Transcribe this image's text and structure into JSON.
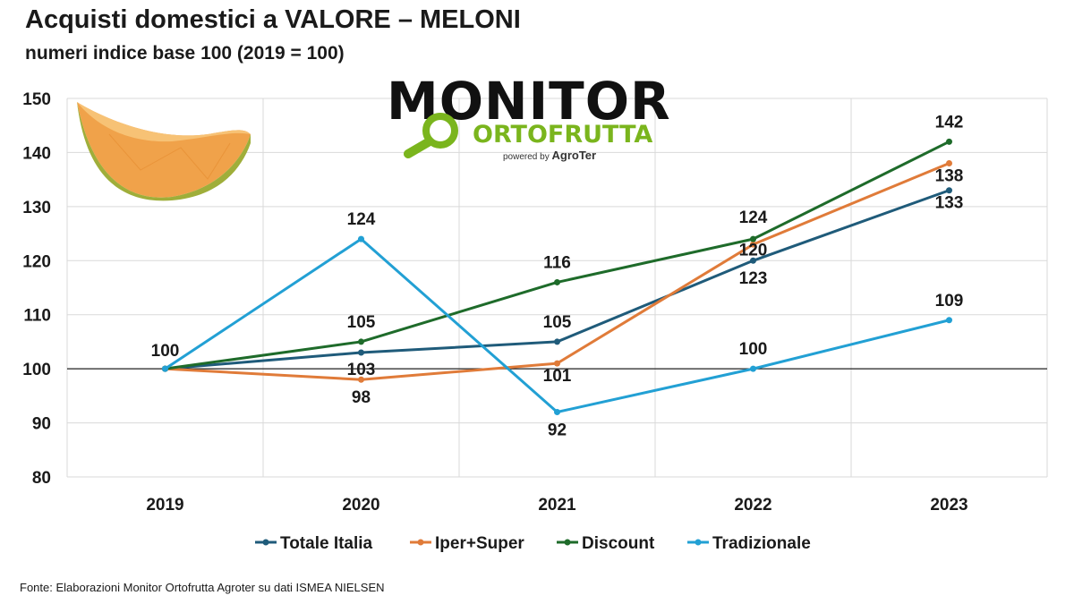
{
  "header": {
    "title": "Acquisti domestici a VALORE – MELONI",
    "subtitle": "numeri indice base 100 (2019 = 100)"
  },
  "logo": {
    "main": "MONITOR",
    "sub": "ORTOFRUTTA",
    "powered_prefix": "powered by",
    "powered_brand": "AgroTer"
  },
  "source": "Fonte: Elaborazioni Monitor Ortofrutta Agroter su dati ISMEA NIELSEN",
  "chart_data": {
    "type": "line",
    "title": "Acquisti domestici a VALORE – MELONI",
    "subtitle": "numeri indice base 100 (2019 = 100)",
    "categories": [
      "2019",
      "2020",
      "2021",
      "2022",
      "2023"
    ],
    "ylim": [
      80,
      150
    ],
    "yticks": [
      80,
      90,
      100,
      110,
      120,
      130,
      140,
      150
    ],
    "grid": true,
    "reference_line": 100,
    "legend_position": "bottom",
    "series": [
      {
        "name": "Totale Italia",
        "color": "#1f5b7a",
        "values": [
          100,
          103,
          105,
          120,
          133
        ]
      },
      {
        "name": "Iper+Super",
        "color": "#e07b39",
        "values": [
          100,
          98,
          101,
          123,
          138
        ]
      },
      {
        "name": "Discount",
        "color": "#1e6b2a",
        "values": [
          100,
          105,
          116,
          124,
          142
        ]
      },
      {
        "name": "Tradizionale",
        "color": "#22a0d4",
        "values": [
          100,
          124,
          92,
          100,
          109
        ]
      }
    ],
    "data_labels": [
      {
        "series": "Totale Italia",
        "category": "2019",
        "text": "100"
      },
      {
        "series": "Totale Italia",
        "category": "2020",
        "text": "103"
      },
      {
        "series": "Totale Italia",
        "category": "2021",
        "text": "105"
      },
      {
        "series": "Totale Italia",
        "category": "2022",
        "text": "120"
      },
      {
        "series": "Totale Italia",
        "category": "2023",
        "text": "133"
      },
      {
        "series": "Iper+Super",
        "category": "2020",
        "text": "98"
      },
      {
        "series": "Iper+Super",
        "category": "2021",
        "text": "101"
      },
      {
        "series": "Iper+Super",
        "category": "2022",
        "text": "123"
      },
      {
        "series": "Iper+Super",
        "category": "2023",
        "text": "138"
      },
      {
        "series": "Discount",
        "category": "2020",
        "text": "105"
      },
      {
        "series": "Discount",
        "category": "2021",
        "text": "116"
      },
      {
        "series": "Discount",
        "category": "2022",
        "text": "124"
      },
      {
        "series": "Discount",
        "category": "2023",
        "text": "142"
      },
      {
        "series": "Tradizionale",
        "category": "2020",
        "text": "124"
      },
      {
        "series": "Tradizionale",
        "category": "2021",
        "text": "92"
      },
      {
        "series": "Tradizionale",
        "category": "2022",
        "text": "100"
      },
      {
        "series": "Tradizionale",
        "category": "2023",
        "text": "109"
      }
    ]
  }
}
